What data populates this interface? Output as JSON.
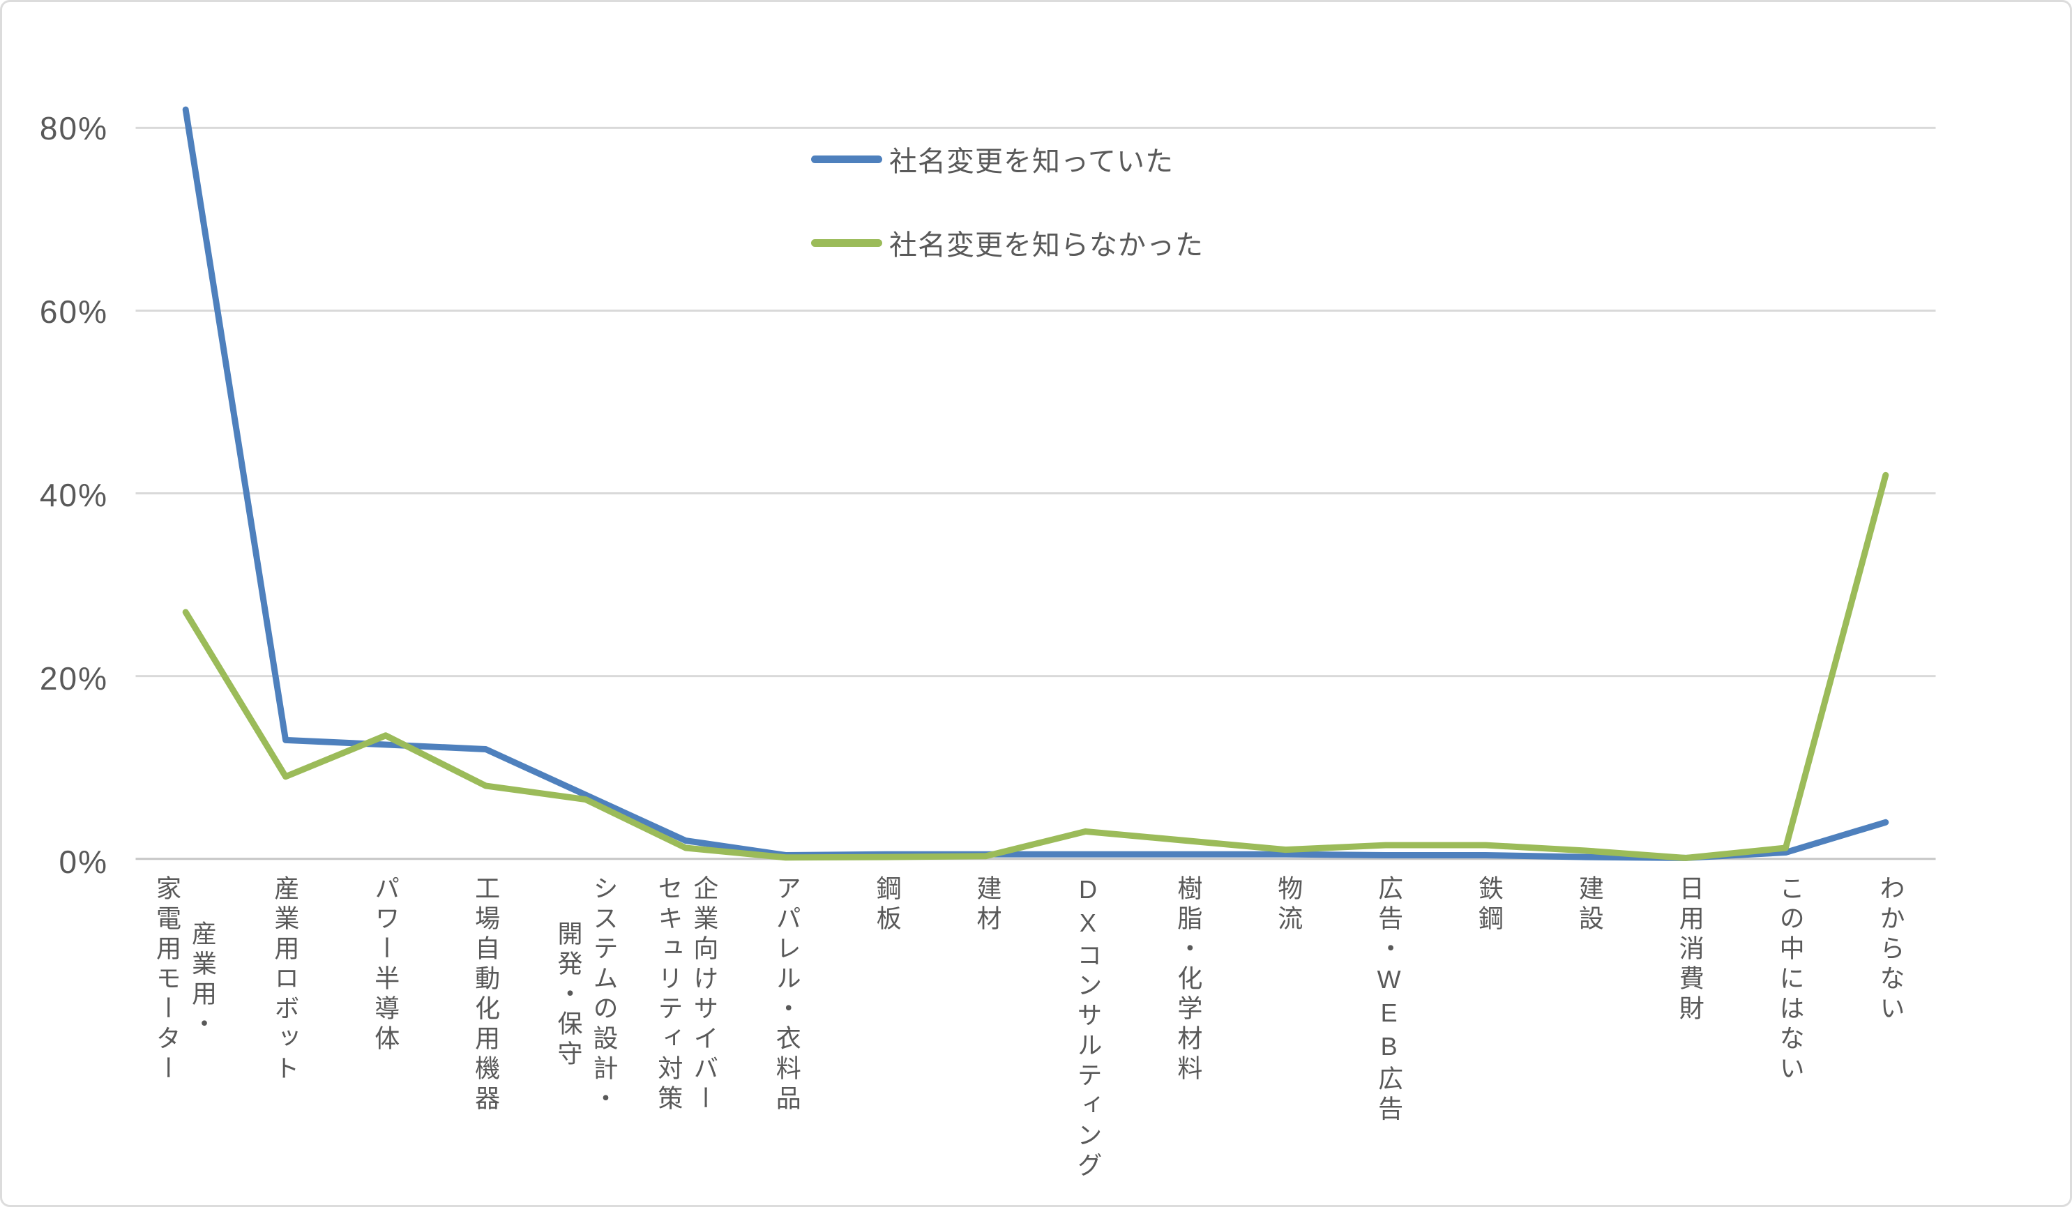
{
  "chart_data": {
    "type": "line",
    "title": "",
    "xlabel": "",
    "ylabel": "",
    "y_ticks": [
      "0%",
      "20%",
      "40%",
      "60%",
      "80%"
    ],
    "ylim": [
      0,
      88
    ],
    "grid": true,
    "legend_position": "top-center",
    "categories": [
      {
        "label": "産業用・家電用モーター",
        "lines": [
          "産業用・",
          "家電用モーター"
        ]
      },
      {
        "label": "産業用ロボット",
        "lines": [
          "産業用ロボット"
        ]
      },
      {
        "label": "パワー半導体",
        "lines": [
          "パワー半導体"
        ]
      },
      {
        "label": "工場自動化用機器",
        "lines": [
          "工場自動化用機器"
        ]
      },
      {
        "label": "システムの設計・開発・保守",
        "lines": [
          "システムの設計・",
          "開発・保守"
        ]
      },
      {
        "label": "企業向けサイバーセキュリティ対策",
        "lines": [
          "企業向けサイバー",
          "セキュリティ対策"
        ]
      },
      {
        "label": "アパレル・衣料品",
        "lines": [
          "アパレル・衣料品"
        ]
      },
      {
        "label": "鋼板",
        "lines": [
          "鋼板"
        ]
      },
      {
        "label": "建材",
        "lines": [
          "建材"
        ]
      },
      {
        "label": "DXコンサルティング",
        "lines": [
          "DXコンサルティング"
        ]
      },
      {
        "label": "樹脂・化学材料",
        "lines": [
          "樹脂・化学材料"
        ]
      },
      {
        "label": "物流",
        "lines": [
          "物流"
        ]
      },
      {
        "label": "広告・WEB広告",
        "lines": [
          "広告・WEB広告"
        ]
      },
      {
        "label": "鉄鋼",
        "lines": [
          "鉄鋼"
        ]
      },
      {
        "label": "建設",
        "lines": [
          "建設"
        ]
      },
      {
        "label": "日用消費財",
        "lines": [
          "日用消費財"
        ]
      },
      {
        "label": "この中にはない",
        "lines": [
          "この中にはない"
        ]
      },
      {
        "label": "わからない",
        "lines": [
          "わからない"
        ]
      }
    ],
    "series": [
      {
        "name": "社名変更を知っていた",
        "color": "#4e80bd",
        "values": [
          82,
          13,
          12.5,
          12,
          7,
          2,
          0.4,
          0.5,
          0.5,
          0.5,
          0.5,
          0.5,
          0.4,
          0.4,
          0.2,
          0.1,
          0.7,
          4
        ]
      },
      {
        "name": "社名変更を知らなかった",
        "color": "#9bbb59",
        "values": [
          27,
          9,
          13.5,
          8,
          6.5,
          1.2,
          0.15,
          0.2,
          0.3,
          3,
          2,
          1,
          1.5,
          1.5,
          0.9,
          0.1,
          1.2,
          42
        ]
      }
    ]
  },
  "colors": {
    "series_blue": "#4e80bd",
    "series_green": "#9bbb59",
    "gridline": "#d9d9d9",
    "axis_line": "#c6c6c6",
    "text": "#595959",
    "chart_border": "#dcdcdc",
    "background": "#ffffff"
  }
}
